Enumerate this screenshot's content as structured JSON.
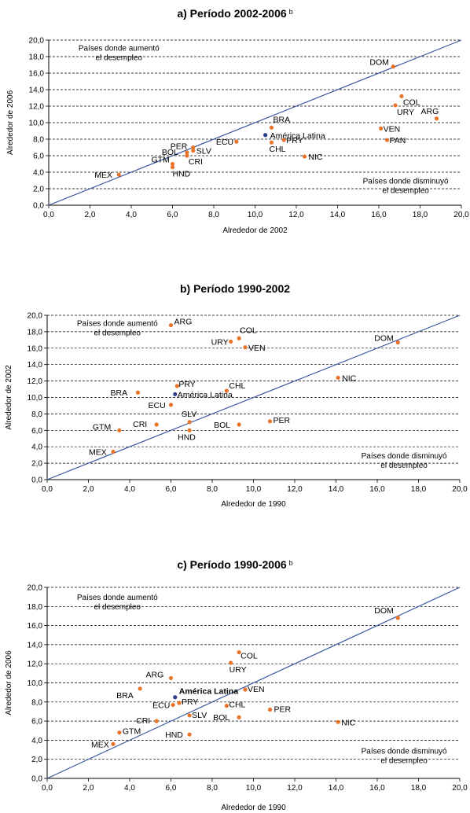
{
  "chart_data": [
    {
      "type": "scatter",
      "title": "a) Período 2002-2006",
      "title_sup": "b",
      "xlabel": "Alrededor de 2002",
      "ylabel": "Alrededor de 2006",
      "xlim": [
        0,
        20
      ],
      "ylim": [
        0,
        20
      ],
      "ticks": [
        "0,0",
        "2,0",
        "4,0",
        "6,0",
        "8,0",
        "10,0",
        "12,0",
        "14,0",
        "16,0",
        "18,0",
        "20,0"
      ],
      "grid": "horizontal dashed",
      "reference_line": "y = x",
      "note_above": [
        "Países donde aumentó",
        "el desempleo"
      ],
      "note_below": [
        "Países donde disminuyó",
        "el desempleo"
      ],
      "points": [
        {
          "label": "DOM",
          "x": 16.7,
          "y": 16.8,
          "color": "#e8742a"
        },
        {
          "label": "COL",
          "x": 17.1,
          "y": 13.2,
          "color": "#e8742a"
        },
        {
          "label": "URY",
          "x": 16.8,
          "y": 12.1,
          "color": "#e8742a"
        },
        {
          "label": "ARG",
          "x": 18.8,
          "y": 10.5,
          "color": "#e8742a"
        },
        {
          "label": "VEN",
          "x": 16.1,
          "y": 9.3,
          "color": "#e8742a"
        },
        {
          "label": "PAN",
          "x": 16.4,
          "y": 7.9,
          "color": "#e8742a"
        },
        {
          "label": "BRA",
          "x": 10.8,
          "y": 9.4,
          "color": "#e8742a"
        },
        {
          "label": "América Latina",
          "x": 10.5,
          "y": 8.5,
          "color": "#2f3f8f"
        },
        {
          "label": "PRY",
          "x": 11.4,
          "y": 7.9,
          "color": "#e8742a"
        },
        {
          "label": "CHL",
          "x": 10.8,
          "y": 7.6,
          "color": "#e8742a"
        },
        {
          "label": "ECU",
          "x": 9.1,
          "y": 7.7,
          "color": "#e8742a"
        },
        {
          "label": "NIC",
          "x": 12.4,
          "y": 5.9,
          "color": "#e8742a"
        },
        {
          "label": "PER",
          "x": 7.0,
          "y": 7.0,
          "color": "#e8742a"
        },
        {
          "label": "SLV",
          "x": 7.0,
          "y": 6.6,
          "color": "#e8742a"
        },
        {
          "label": "BOL",
          "x": 6.7,
          "y": 6.4,
          "color": "#e8742a"
        },
        {
          "label": "CRI",
          "x": 6.7,
          "y": 6.0,
          "color": "#e8742a"
        },
        {
          "label": "GTM",
          "x": 6.0,
          "y": 5.0,
          "color": "#e8742a"
        },
        {
          "label": "HND",
          "x": 6.0,
          "y": 4.6,
          "color": "#e8742a"
        },
        {
          "label": "MEX",
          "x": 3.4,
          "y": 3.7,
          "color": "#e8742a"
        }
      ]
    },
    {
      "type": "scatter",
      "title": "b) Período 1990-2002",
      "title_sup": "",
      "xlabel": "Alrededor de 1990",
      "ylabel": "Alrededor de 2002",
      "xlim": [
        0,
        20
      ],
      "ylim": [
        0,
        20
      ],
      "ticks": [
        "0,0",
        "2,0",
        "4,0",
        "6,0",
        "8,0",
        "10,0",
        "12,0",
        "14,0",
        "16,0",
        "18,0",
        "20,0"
      ],
      "grid": "horizontal dashed",
      "reference_line": "y = x",
      "note_above": [
        "Países donde aumentó",
        "el desempleo"
      ],
      "note_below": [
        "Países donde disminuyó",
        "el desempleo"
      ],
      "points": [
        {
          "label": "ARG",
          "x": 6.0,
          "y": 18.8,
          "color": "#e8742a"
        },
        {
          "label": "COL",
          "x": 9.3,
          "y": 17.2,
          "color": "#e8742a"
        },
        {
          "label": "URY",
          "x": 8.9,
          "y": 16.8,
          "color": "#e8742a"
        },
        {
          "label": "VEN",
          "x": 9.6,
          "y": 16.1,
          "color": "#e8742a"
        },
        {
          "label": "DOM",
          "x": 17.0,
          "y": 16.7,
          "color": "#e8742a"
        },
        {
          "label": "NIC",
          "x": 14.1,
          "y": 12.4,
          "color": "#e8742a"
        },
        {
          "label": "PRY",
          "x": 6.3,
          "y": 11.4,
          "color": "#e8742a"
        },
        {
          "label": "CHL",
          "x": 8.7,
          "y": 10.8,
          "color": "#e8742a"
        },
        {
          "label": "BRA",
          "x": 4.4,
          "y": 10.6,
          "color": "#e8742a"
        },
        {
          "label": "América Latina",
          "x": 6.2,
          "y": 10.4,
          "color": "#2f3f8f"
        },
        {
          "label": "ECU",
          "x": 6.0,
          "y": 9.1,
          "color": "#e8742a"
        },
        {
          "label": "SLV",
          "x": 6.9,
          "y": 7.0,
          "color": "#e8742a"
        },
        {
          "label": "PER",
          "x": 10.8,
          "y": 7.1,
          "color": "#e8742a"
        },
        {
          "label": "CRI",
          "x": 5.3,
          "y": 6.7,
          "color": "#e8742a"
        },
        {
          "label": "BOL",
          "x": 9.3,
          "y": 6.7,
          "color": "#e8742a"
        },
        {
          "label": "GTM",
          "x": 3.5,
          "y": 6.0,
          "color": "#e8742a"
        },
        {
          "label": "HND",
          "x": 6.9,
          "y": 6.0,
          "color": "#e8742a"
        },
        {
          "label": "MEX",
          "x": 3.2,
          "y": 3.4,
          "color": "#e8742a"
        }
      ]
    },
    {
      "type": "scatter",
      "title": "c) Período 1990-2006",
      "title_sup": "b",
      "xlabel": "Alrededor de 1990",
      "ylabel": "Alrededor de 2006",
      "xlim": [
        0,
        20
      ],
      "ylim": [
        0,
        20
      ],
      "ticks": [
        "0,0",
        "2,0",
        "4,0",
        "6,0",
        "8,0",
        "10,0",
        "12,0",
        "14,0",
        "16,0",
        "18,0",
        "20,0"
      ],
      "grid": "horizontal dashed",
      "reference_line": "y = x",
      "note_above": [
        "Países donde aumentó",
        "el desempleo"
      ],
      "note_below": [
        "Países donde disminuyó",
        "el desempleo"
      ],
      "points": [
        {
          "label": "DOM",
          "x": 17.0,
          "y": 16.8,
          "color": "#e8742a"
        },
        {
          "label": "COL",
          "x": 9.3,
          "y": 13.2,
          "color": "#e8742a"
        },
        {
          "label": "URY",
          "x": 8.9,
          "y": 12.1,
          "color": "#e8742a"
        },
        {
          "label": "ARG",
          "x": 6.0,
          "y": 10.5,
          "color": "#e8742a"
        },
        {
          "label": "BRA",
          "x": 4.5,
          "y": 9.4,
          "color": "#e8742a"
        },
        {
          "label": "VEN",
          "x": 9.6,
          "y": 9.3,
          "color": "#e8742a"
        },
        {
          "label": "América Latina",
          "x": 6.2,
          "y": 8.5,
          "color": "#2f3f8f",
          "bold": true
        },
        {
          "label": "PRY",
          "x": 6.4,
          "y": 7.9,
          "color": "#e8742a"
        },
        {
          "label": "ECU",
          "x": 6.1,
          "y": 7.7,
          "color": "#e8742a"
        },
        {
          "label": "CHL",
          "x": 8.7,
          "y": 7.6,
          "color": "#e8742a"
        },
        {
          "label": "PER",
          "x": 10.8,
          "y": 7.2,
          "color": "#e8742a"
        },
        {
          "label": "SLV",
          "x": 6.9,
          "y": 6.6,
          "color": "#e8742a"
        },
        {
          "label": "BOL",
          "x": 9.3,
          "y": 6.4,
          "color": "#e8742a"
        },
        {
          "label": "CRI",
          "x": 5.3,
          "y": 6.0,
          "color": "#e8742a"
        },
        {
          "label": "NIC",
          "x": 14.1,
          "y": 5.9,
          "color": "#e8742a"
        },
        {
          "label": "GTM",
          "x": 3.5,
          "y": 4.8,
          "color": "#e8742a"
        },
        {
          "label": "HND",
          "x": 6.9,
          "y": 4.6,
          "color": "#e8742a"
        },
        {
          "label": "MEX",
          "x": 3.2,
          "y": 3.6,
          "color": "#e8742a"
        }
      ]
    }
  ]
}
